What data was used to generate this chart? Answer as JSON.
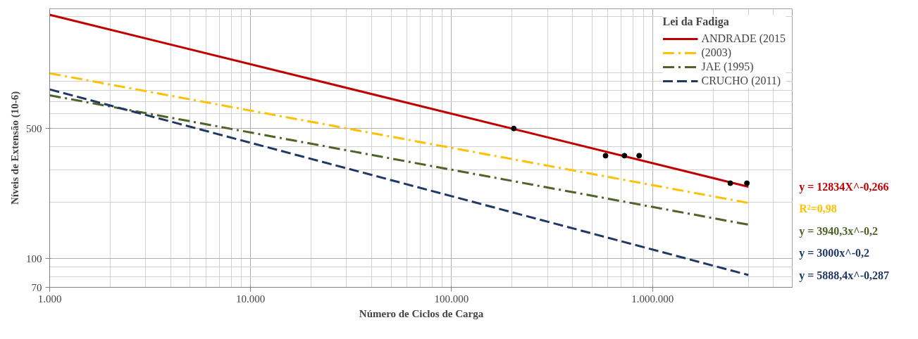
{
  "chart_data": {
    "type": "line",
    "xlabel": "Número de Ciclos de Carga",
    "ylabel": "Níveis de Extensão (10-6)",
    "legend_title": "Lei da Fadiga",
    "log": "xy",
    "grid": true,
    "legend": "top right",
    "xlim": [
      1000,
      5000000
    ],
    "ylim": [
      70,
      2200
    ],
    "xticks": [
      {
        "value": 1000,
        "label": "1.000"
      },
      {
        "value": 10000,
        "label": "10.000"
      },
      {
        "value": 100000,
        "label": "100.000"
      },
      {
        "value": 1000000,
        "label": "1.000.000"
      }
    ],
    "yticks": [
      70,
      100,
      500
    ],
    "series": [
      {
        "name": "ANDRADE (2015",
        "color": "#c00000",
        "line_style": "solid",
        "x": [
          1000,
          3000000
        ],
        "values": [
          2043,
          243
        ]
      },
      {
        "name": "(2003)",
        "color": "#ffc000",
        "line_style": "dashdot",
        "x": [
          1000,
          3000000
        ],
        "values": [
          990,
          199
        ]
      },
      {
        "name": "JAE (1995)",
        "color": "#4f6228",
        "line_style": "dashdot",
        "x": [
          1000,
          3000000
        ],
        "values": [
          754,
          152
        ]
      },
      {
        "name": "CRUCHO (2011)",
        "color": "#1f3864",
        "line_style": "dashed",
        "x": [
          1000,
          3000000
        ],
        "values": [
          811,
          81.5
        ]
      },
      {
        "type": "scatter",
        "marker": "circle",
        "color": "#000000",
        "x": [
          204000,
          584000,
          725000,
          858000,
          2440000,
          2950000
        ],
        "values": [
          500,
          357,
          357,
          357,
          254,
          254
        ]
      }
    ],
    "annotations": [
      "y = 12834X^-0,266",
      "R²=0,98",
      "y = 3940,3x^-0,2",
      "y = 3000x^-0,2",
      "y = 5888,4x^-0,287"
    ]
  }
}
